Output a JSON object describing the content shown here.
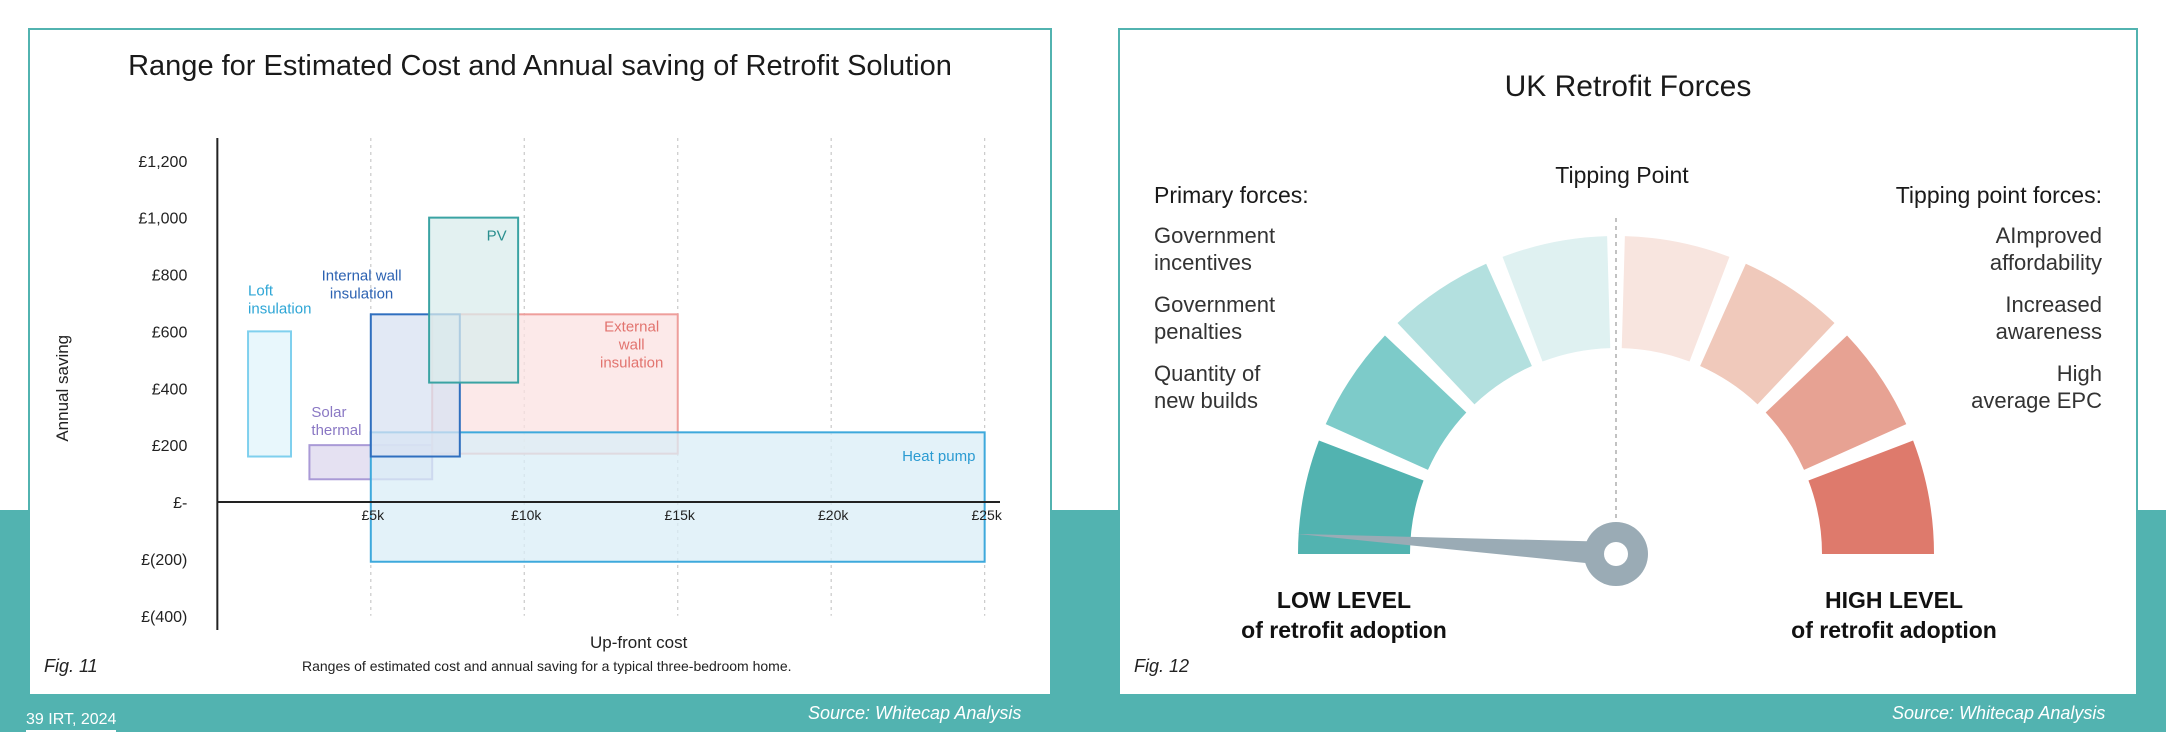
{
  "footer": {
    "page_number": "39 IRT, 2024",
    "source_left": "Source: Whitecap Analysis",
    "source_right": "Source: Whitecap Analysis"
  },
  "fig11": {
    "fig_label": "Fig. 11",
    "caption": "Ranges of estimated cost and annual saving for a typical three-bedroom home."
  },
  "chart_data": {
    "type": "range-box",
    "title": "Range for Estimated Cost and Annual saving of Retrofit Solution",
    "xlabel": "Up-front cost",
    "ylabel": "Annual saving",
    "xlim": [
      -500,
      25500
    ],
    "ylim": [
      -450,
      1280
    ],
    "x_ticks": [
      {
        "value": 5000,
        "label": "£5k"
      },
      {
        "value": 10000,
        "label": "£10k"
      },
      {
        "value": 15000,
        "label": "£15k"
      },
      {
        "value": 20000,
        "label": "£20k"
      },
      {
        "value": 25000,
        "label": "£25k"
      }
    ],
    "y_ticks": [
      {
        "value": 1200,
        "label": "£1,200"
      },
      {
        "value": 1000,
        "label": "£1,000"
      },
      {
        "value": 800,
        "label": "£800"
      },
      {
        "value": 600,
        "label": "£600"
      },
      {
        "value": 400,
        "label": "£400"
      },
      {
        "value": 200,
        "label": "£200"
      },
      {
        "value": 0,
        "label": "£-"
      },
      {
        "value": -200,
        "label": "£(200)"
      },
      {
        "value": -400,
        "label": "£(400)"
      }
    ],
    "grid_x": true,
    "series": [
      {
        "name": "Loft insulation",
        "label_lines": [
          "Loft",
          "insulation"
        ],
        "x_range": [
          1000,
          2400
        ],
        "y_range": [
          160,
          600
        ],
        "fill": "#e0f4fb",
        "stroke": "#7fd0ee",
        "text_color": "#2ea6d6"
      },
      {
        "name": "Solar thermal",
        "label_lines": [
          "Solar",
          "thermal"
        ],
        "x_range": [
          3000,
          7000
        ],
        "y_range": [
          80,
          200
        ],
        "fill": "#dcd7ee",
        "stroke": "#a99ad6",
        "text_color": "#8a78c4"
      },
      {
        "name": "External wall insulation",
        "label_lines": [
          "External",
          "wall",
          "insulation"
        ],
        "x_range": [
          7000,
          15000
        ],
        "y_range": [
          170,
          660
        ],
        "fill": "#fbe2e1",
        "stroke": "#ee9e9b",
        "text_color": "#e2746f"
      },
      {
        "name": "Heat pump",
        "label_lines": [
          "Heat pump"
        ],
        "x_range": [
          5000,
          25000
        ],
        "y_range": [
          -210,
          245
        ],
        "fill": "#daeef7",
        "stroke": "#3ea9dc",
        "text_color": "#2b9bd2"
      },
      {
        "name": "Internal wall insulation",
        "label_lines": [
          "Internal wall",
          "insulation"
        ],
        "x_range": [
          5000,
          7900
        ],
        "y_range": [
          160,
          660
        ],
        "fill": "#d8e2f2",
        "stroke": "#2f6fbf",
        "text_color": "#2c62b2"
      },
      {
        "name": "PV",
        "label_lines": [
          "PV"
        ],
        "x_range": [
          6900,
          9800
        ],
        "y_range": [
          420,
          1000
        ],
        "fill": "#d9ecec",
        "stroke": "#3aa3a3",
        "text_color": "#2a8f8f"
      }
    ]
  },
  "fig12": {
    "title": "UK Retrofit Forces",
    "fig_label": "Fig. 12",
    "tipping_point": "Tipping Point",
    "primary_heading": "Primary forces:",
    "primary_items": [
      [
        "Government",
        "incentives"
      ],
      [
        "Government",
        "penalties"
      ],
      [
        "Quantity of",
        "new builds"
      ]
    ],
    "tipping_heading": "Tipping point forces:",
    "tipping_items": [
      [
        "AImproved",
        "affordability"
      ],
      [
        "Increased",
        "awareness"
      ],
      [
        "High",
        "average EPC"
      ]
    ],
    "low_level": [
      "LOW LEVEL",
      "of retrofit adoption"
    ],
    "high_level": [
      "HIGH LEVEL",
      "of retrofit adoption"
    ],
    "gauge_colors": [
      "#52b3b0",
      "#7dcbc9",
      "#b3e0df",
      "#dff1f1",
      "#f8e5df",
      "#f0c9bb",
      "#e7a293",
      "#de7a6c"
    ],
    "needle_color": "#9aabb5",
    "needle_level": 0.02
  }
}
